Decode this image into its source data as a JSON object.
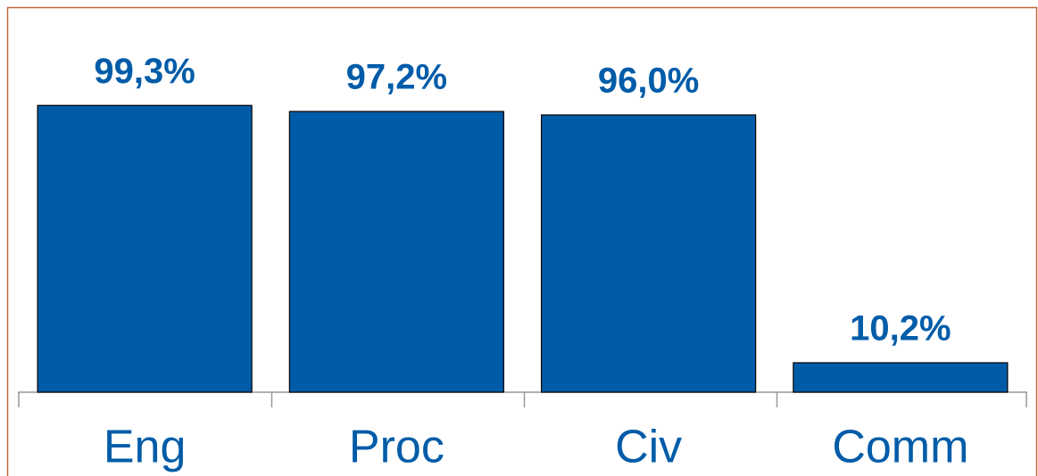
{
  "chart_data": {
    "type": "bar",
    "categories": [
      "Eng",
      "Proc",
      "Civ",
      "Comm"
    ],
    "values": [
      99.3,
      97.2,
      96.0,
      10.2
    ],
    "value_labels": [
      "99,3%",
      "97,2%",
      "96,0%",
      "10,2%"
    ],
    "color": "#005ca8",
    "ylim": [
      0,
      100
    ]
  }
}
